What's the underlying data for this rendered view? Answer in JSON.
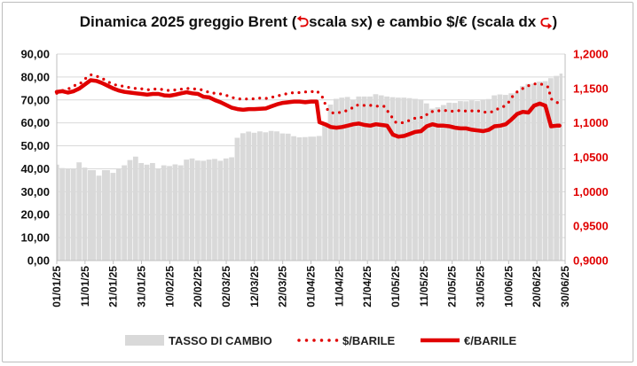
{
  "chart_data": {
    "type": "bar+line",
    "title": {
      "part1": "Dinamica 2025 greggio Brent (",
      "arrow_left": "⮌",
      "part2": "scala sx) e cambio $/€ (scala dx ",
      "arrow_right": "⮎",
      "part3": ")"
    },
    "left_axis": {
      "range": [
        0,
        90
      ],
      "ticks": [
        "0,00",
        "10,00",
        "20,00",
        "30,00",
        "40,00",
        "50,00",
        "60,00",
        "70,00",
        "80,00",
        "90,00"
      ],
      "color": "#111111"
    },
    "right_axis": {
      "range": [
        0.9,
        1.2
      ],
      "ticks": [
        "0,9000",
        "0,9500",
        "1,0000",
        "1,0500",
        "1,1000",
        "1,1500",
        "1,2000"
      ],
      "color": "#e00000"
    },
    "x_ticks": [
      "01/01/25",
      "11/01/25",
      "21/01/25",
      "31/01/25",
      "10/02/25",
      "20/02/25",
      "02/03/25",
      "12/03/25",
      "22/03/25",
      "01/04/25",
      "11/04/25",
      "21/04/25",
      "01/05/25",
      "11/05/25",
      "21/05/25",
      "31/05/25",
      "10/06/25",
      "20/06/25",
      "30/06/25"
    ],
    "grid": true,
    "legend_position": "bottom",
    "series": [
      {
        "name": "TASSO DI CAMBIO",
        "kind": "bar",
        "axis": "left",
        "color": "#d9d9d9",
        "points": [
          [
            "01/01/25",
            41.8
          ],
          [
            "02/01/25",
            40.3
          ],
          [
            "04/01/25",
            39.9
          ],
          [
            "06/01/25",
            39.8
          ],
          [
            "08/01/25",
            42.8
          ],
          [
            "10/01/25",
            40.5
          ],
          [
            "12/01/25",
            39.4
          ],
          [
            "15/01/25",
            37.0
          ],
          [
            "17/01/25",
            39.4
          ],
          [
            "20/01/25",
            38.2
          ],
          [
            "22/01/25",
            39.8
          ],
          [
            "24/01/25",
            41.5
          ],
          [
            "26/01/25",
            43.8
          ],
          [
            "28/01/25",
            45.3
          ],
          [
            "30/01/25",
            42.5
          ],
          [
            "01/02/25",
            41.8
          ],
          [
            "03/02/25",
            42.5
          ],
          [
            "05/02/25",
            39.8
          ],
          [
            "07/02/25",
            41.5
          ],
          [
            "09/02/25",
            41.2
          ],
          [
            "11/02/25",
            41.9
          ],
          [
            "13/02/25",
            41.5
          ],
          [
            "15/02/25",
            44.0
          ],
          [
            "17/02/25",
            44.5
          ],
          [
            "19/02/25",
            43.6
          ],
          [
            "21/02/25",
            43.5
          ],
          [
            "23/02/25",
            44.0
          ],
          [
            "25/02/25",
            44.3
          ],
          [
            "27/02/25",
            43.5
          ],
          [
            "01/03/25",
            44.5
          ],
          [
            "03/03/25",
            45.0
          ],
          [
            "05/03/25",
            53.5
          ],
          [
            "07/03/25",
            55.5
          ],
          [
            "09/03/25",
            56.2
          ],
          [
            "11/03/25",
            55.7
          ],
          [
            "13/03/25",
            56.3
          ],
          [
            "15/03/25",
            55.9
          ],
          [
            "17/03/25",
            56.5
          ],
          [
            "19/03/25",
            56.3
          ],
          [
            "21/03/25",
            55.4
          ],
          [
            "23/03/25",
            55.3
          ],
          [
            "25/03/25",
            54.2
          ],
          [
            "27/03/25",
            53.7
          ],
          [
            "29/03/25",
            53.8
          ],
          [
            "31/03/25",
            54.0
          ],
          [
            "03/04/25",
            54.3
          ],
          [
            "05/04/25",
            60.0
          ],
          [
            "07/04/25",
            68.0
          ],
          [
            "09/04/25",
            70.5
          ],
          [
            "11/04/25",
            71.0
          ],
          [
            "13/04/25",
            71.3
          ],
          [
            "15/04/25",
            70.0
          ],
          [
            "17/04/25",
            71.5
          ],
          [
            "19/04/25",
            71.5
          ],
          [
            "21/04/25",
            71.5
          ],
          [
            "23/04/25",
            72.5
          ],
          [
            "25/04/25",
            72.0
          ],
          [
            "27/04/25",
            71.5
          ],
          [
            "29/04/25",
            71.2
          ],
          [
            "01/05/25",
            71.0
          ],
          [
            "03/05/25",
            71.0
          ],
          [
            "05/05/25",
            70.8
          ],
          [
            "07/05/25",
            70.5
          ],
          [
            "09/05/25",
            70.2
          ],
          [
            "11/05/25",
            68.5
          ],
          [
            "13/05/25",
            66.2
          ],
          [
            "15/05/25",
            66.8
          ],
          [
            "17/05/25",
            67.8
          ],
          [
            "19/05/25",
            68.8
          ],
          [
            "21/05/25",
            68.7
          ],
          [
            "23/05/25",
            69.5
          ],
          [
            "25/05/25",
            69.4
          ],
          [
            "27/05/25",
            69.8
          ],
          [
            "29/05/25",
            69.5
          ],
          [
            "31/05/25",
            70.2
          ],
          [
            "02/06/25",
            70.4
          ],
          [
            "04/06/25",
            72.0
          ],
          [
            "06/06/25",
            72.4
          ],
          [
            "08/06/25",
            72.2
          ],
          [
            "10/06/25",
            72.9
          ],
          [
            "12/06/25",
            73.2
          ],
          [
            "14/06/25",
            76.0
          ],
          [
            "16/06/25",
            77.0
          ],
          [
            "18/06/25",
            77.1
          ],
          [
            "20/06/25",
            78.0
          ],
          [
            "22/06/25",
            78.2
          ],
          [
            "24/06/25",
            79.5
          ],
          [
            "26/06/25",
            80.5
          ],
          [
            "28/06/25",
            81.5
          ]
        ]
      },
      {
        "name": "$/BARILE",
        "kind": "line",
        "style": "dotted",
        "axis": "right",
        "color": "#e00000",
        "points": [
          [
            "01/01/25",
            1.143
          ],
          [
            "03/01/25",
            1.147
          ],
          [
            "05/01/25",
            1.149
          ],
          [
            "07/01/25",
            1.154
          ],
          [
            "09/01/25",
            1.156
          ],
          [
            "11/01/25",
            1.164
          ],
          [
            "13/01/25",
            1.17
          ],
          [
            "15/01/25",
            1.168
          ],
          [
            "17/01/25",
            1.165
          ],
          [
            "19/01/25",
            1.16
          ],
          [
            "21/01/25",
            1.156
          ],
          [
            "23/01/25",
            1.154
          ],
          [
            "25/01/25",
            1.153
          ],
          [
            "27/01/25",
            1.151
          ],
          [
            "29/01/25",
            1.15
          ],
          [
            "31/01/25",
            1.1495
          ],
          [
            "02/02/25",
            1.148
          ],
          [
            "04/02/25",
            1.149
          ],
          [
            "06/02/25",
            1.1495
          ],
          [
            "08/02/25",
            1.148
          ],
          [
            "10/02/25",
            1.147
          ],
          [
            "12/02/25",
            1.148
          ],
          [
            "14/02/25",
            1.149
          ],
          [
            "16/02/25",
            1.15
          ],
          [
            "18/02/25",
            1.1495
          ],
          [
            "20/02/25",
            1.149
          ],
          [
            "22/02/25",
            1.1475
          ],
          [
            "24/02/25",
            1.144
          ],
          [
            "26/02/25",
            1.143
          ],
          [
            "28/02/25",
            1.142
          ],
          [
            "02/03/25",
            1.14
          ],
          [
            "04/03/25",
            1.137
          ],
          [
            "06/03/25",
            1.135
          ],
          [
            "08/03/25",
            1.1345
          ],
          [
            "10/03/25",
            1.135
          ],
          [
            "12/03/25",
            1.135
          ],
          [
            "14/03/25",
            1.136
          ],
          [
            "16/03/25",
            1.1355
          ],
          [
            "18/03/25",
            1.137
          ],
          [
            "20/03/25",
            1.139
          ],
          [
            "22/03/25",
            1.141
          ],
          [
            "24/03/25",
            1.143
          ],
          [
            "26/03/25",
            1.144
          ],
          [
            "28/03/25",
            1.144
          ],
          [
            "30/03/25",
            1.145
          ],
          [
            "01/04/25",
            1.145
          ],
          [
            "03/04/25",
            1.147
          ],
          [
            "05/04/25",
            1.138
          ],
          [
            "07/04/25",
            1.118
          ],
          [
            "09/04/25",
            1.114
          ],
          [
            "11/04/25",
            1.115
          ],
          [
            "13/04/25",
            1.117
          ],
          [
            "15/04/25",
            1.12
          ],
          [
            "17/04/25",
            1.126
          ],
          [
            "19/04/25",
            1.125
          ],
          [
            "21/04/25",
            1.126
          ],
          [
            "23/04/25",
            1.125
          ],
          [
            "25/04/25",
            1.124
          ],
          [
            "27/04/25",
            1.124
          ],
          [
            "29/04/25",
            1.112
          ],
          [
            "01/05/25",
            1.101
          ],
          [
            "03/05/25",
            1.1
          ],
          [
            "05/05/25",
            1.102
          ],
          [
            "07/05/25",
            1.106
          ],
          [
            "09/05/25",
            1.108
          ],
          [
            "11/05/25",
            1.108
          ],
          [
            "13/05/25",
            1.116
          ],
          [
            "15/05/25",
            1.117
          ],
          [
            "17/05/25",
            1.118
          ],
          [
            "19/05/25",
            1.118
          ],
          [
            "21/05/25",
            1.117
          ],
          [
            "23/05/25",
            1.118
          ],
          [
            "25/05/25",
            1.117
          ],
          [
            "27/05/25",
            1.118
          ],
          [
            "29/05/25",
            1.117
          ],
          [
            "31/05/25",
            1.1175
          ],
          [
            "02/06/25",
            1.115
          ],
          [
            "04/06/25",
            1.116
          ],
          [
            "06/06/25",
            1.12
          ],
          [
            "08/06/25",
            1.123
          ],
          [
            "10/06/25",
            1.13
          ],
          [
            "12/06/25",
            1.142
          ],
          [
            "14/06/25",
            1.148
          ],
          [
            "16/06/25",
            1.152
          ],
          [
            "18/06/25",
            1.156
          ],
          [
            "20/06/25",
            1.157
          ],
          [
            "22/06/25",
            1.156
          ],
          [
            "24/06/25",
            1.152
          ],
          [
            "25/06/25",
            1.135
          ],
          [
            "27/06/25",
            1.13
          ],
          [
            "28/06/25",
            1.128
          ]
        ]
      },
      {
        "name": "€/BARILE",
        "kind": "line",
        "style": "solid",
        "axis": "right",
        "color": "#e00000",
        "points": [
          [
            "01/01/25",
            1.145
          ],
          [
            "03/01/25",
            1.146
          ],
          [
            "05/01/25",
            1.144
          ],
          [
            "07/01/25",
            1.146
          ],
          [
            "09/01/25",
            1.15
          ],
          [
            "11/01/25",
            1.156
          ],
          [
            "13/01/25",
            1.162
          ],
          [
            "15/01/25",
            1.161
          ],
          [
            "17/01/25",
            1.158
          ],
          [
            "19/01/25",
            1.154
          ],
          [
            "21/01/25",
            1.15
          ],
          [
            "23/01/25",
            1.147
          ],
          [
            "25/01/25",
            1.145
          ],
          [
            "27/01/25",
            1.144
          ],
          [
            "29/01/25",
            1.143
          ],
          [
            "31/01/25",
            1.142
          ],
          [
            "02/02/25",
            1.141
          ],
          [
            "04/02/25",
            1.142
          ],
          [
            "06/02/25",
            1.142
          ],
          [
            "08/02/25",
            1.14
          ],
          [
            "10/02/25",
            1.1395
          ],
          [
            "12/02/25",
            1.141
          ],
          [
            "14/02/25",
            1.143
          ],
          [
            "16/02/25",
            1.1445
          ],
          [
            "18/02/25",
            1.143
          ],
          [
            "20/02/25",
            1.142
          ],
          [
            "22/02/25",
            1.138
          ],
          [
            "24/02/25",
            1.137
          ],
          [
            "26/02/25",
            1.133
          ],
          [
            "28/02/25",
            1.13
          ],
          [
            "02/03/25",
            1.126
          ],
          [
            "04/03/25",
            1.122
          ],
          [
            "06/03/25",
            1.12
          ],
          [
            "08/03/25",
            1.119
          ],
          [
            "10/03/25",
            1.12
          ],
          [
            "12/03/25",
            1.12
          ],
          [
            "14/03/25",
            1.1205
          ],
          [
            "16/03/25",
            1.121
          ],
          [
            "18/03/25",
            1.124
          ],
          [
            "20/03/25",
            1.127
          ],
          [
            "22/03/25",
            1.129
          ],
          [
            "24/03/25",
            1.13
          ],
          [
            "26/03/25",
            1.131
          ],
          [
            "28/03/25",
            1.131
          ],
          [
            "30/03/25",
            1.13
          ],
          [
            "01/04/25",
            1.131
          ],
          [
            "03/04/25",
            1.131
          ],
          [
            "04/04/25",
            1.101
          ],
          [
            "06/04/25",
            1.098
          ],
          [
            "08/04/25",
            1.094
          ],
          [
            "10/04/25",
            1.093
          ],
          [
            "12/04/25",
            1.094
          ],
          [
            "14/04/25",
            1.096
          ],
          [
            "16/04/25",
            1.098
          ],
          [
            "18/04/25",
            1.099
          ],
          [
            "20/04/25",
            1.097
          ],
          [
            "22/04/25",
            1.096
          ],
          [
            "24/04/25",
            1.098
          ],
          [
            "26/04/25",
            1.097
          ],
          [
            "28/04/25",
            1.096
          ],
          [
            "30/04/25",
            1.083
          ],
          [
            "02/05/25",
            1.08
          ],
          [
            "04/05/25",
            1.081
          ],
          [
            "06/05/25",
            1.084
          ],
          [
            "08/05/25",
            1.087
          ],
          [
            "10/05/25",
            1.088
          ],
          [
            "12/05/25",
            1.095
          ],
          [
            "14/05/25",
            1.098
          ],
          [
            "16/05/25",
            1.096
          ],
          [
            "18/05/25",
            1.096
          ],
          [
            "20/05/25",
            1.095
          ],
          [
            "22/05/25",
            1.093
          ],
          [
            "24/05/25",
            1.092
          ],
          [
            "26/05/25",
            1.092
          ],
          [
            "28/05/25",
            1.09
          ],
          [
            "30/05/25",
            1.089
          ],
          [
            "01/06/25",
            1.088
          ],
          [
            "03/06/25",
            1.09
          ],
          [
            "05/06/25",
            1.095
          ],
          [
            "07/06/25",
            1.096
          ],
          [
            "09/06/25",
            1.098
          ],
          [
            "11/06/25",
            1.105
          ],
          [
            "13/06/25",
            1.113
          ],
          [
            "15/06/25",
            1.116
          ],
          [
            "17/06/25",
            1.115
          ],
          [
            "19/06/25",
            1.125
          ],
          [
            "21/06/25",
            1.128
          ],
          [
            "23/06/25",
            1.125
          ],
          [
            "25/06/25",
            1.095
          ],
          [
            "27/06/25",
            1.096
          ],
          [
            "28/06/25",
            1.096
          ]
        ]
      }
    ]
  }
}
